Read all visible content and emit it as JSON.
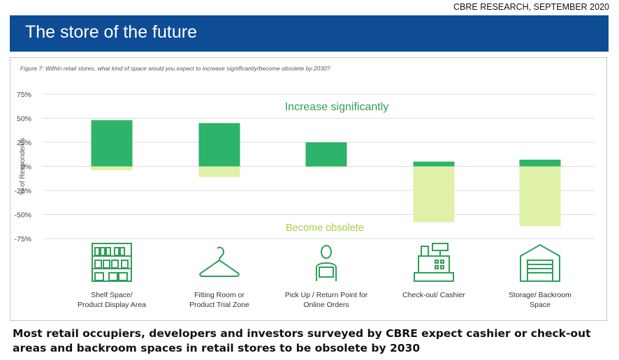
{
  "header": {
    "source": "CBRE RESEARCH, SEPTEMBER 2020",
    "title": "The store of the future"
  },
  "figure_caption": "Figure 7: Within retail stores, what kind of space would you expect to increase significantly/become obsolete by 2030?",
  "footnote": "Most retail occupiers, developers and investors surveyed by CBRE expect cashier or check-out areas and backroom spaces in retail stores to be obsolete by 2030",
  "colors": {
    "banner": "#0e4d96",
    "increase": "#2db36a",
    "obsolete": "#dff0a8",
    "increase_text": "#2e9e58",
    "obsolete_text": "#a7cf4b",
    "icon": "#2e9e58"
  },
  "chart_data": {
    "type": "bar",
    "title": "Within retail stores, what kind of space would you expect to increase significantly/become obsolete by 2030?",
    "ylabel": "% of Respondents",
    "xlabel": "",
    "ylim": [
      -75,
      75
    ],
    "yticks": [
      75,
      50,
      25,
      0,
      -25,
      -50,
      -75
    ],
    "ytick_labels": [
      "75%",
      "50%",
      "25%",
      "0%",
      "-25%",
      "-50%",
      "-75%"
    ],
    "categories": [
      [
        "Shelf Space/",
        "Product Display Area"
      ],
      [
        "Fitting Room or",
        "Product Trial Zone"
      ],
      [
        "Pick Up / Return Point for",
        "Online Orders"
      ],
      [
        "Check-out/ Cashier"
      ],
      [
        "Storage/ Backroom",
        "Space"
      ]
    ],
    "icons": [
      "shelf-icon",
      "hanger-icon",
      "pickup-person-icon",
      "cash-register-icon",
      "storage-garage-icon"
    ],
    "series": [
      {
        "name": "Increase significantly",
        "values": [
          48,
          45,
          25,
          5,
          7
        ]
      },
      {
        "name": "Become obsolete",
        "values": [
          -4,
          -11,
          -1,
          -58,
          -62
        ]
      }
    ],
    "annotations": [
      "Increase significantly",
      "Become obsolete"
    ],
    "grid": true,
    "legend": "none"
  }
}
